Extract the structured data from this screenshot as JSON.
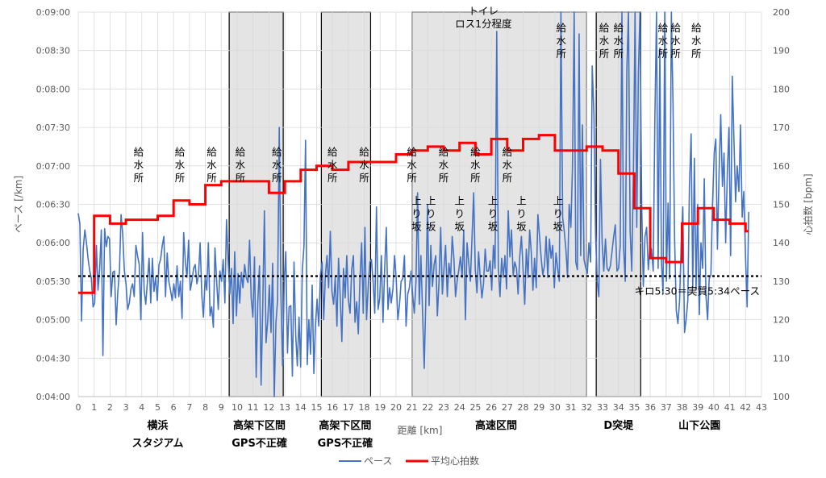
{
  "chart_data": {
    "type": "line",
    "xlabel": "距離 [km]",
    "ylabel_left": "ペース [/km]",
    "ylabel_right": "心拍数 [bpm]",
    "xlim": [
      0,
      43
    ],
    "ylim_left_seconds": [
      240,
      540
    ],
    "ylim_right": [
      100,
      200
    ],
    "x_ticks": [
      "0",
      "1",
      "2",
      "3",
      "4",
      "5",
      "6",
      "7",
      "8",
      "9",
      "10",
      "11",
      "12",
      "13",
      "14",
      "15",
      "16",
      "17",
      "18",
      "19",
      "20",
      "21",
      "22",
      "23",
      "24",
      "25",
      "26",
      "27",
      "28",
      "29",
      "30",
      "31",
      "32",
      "33",
      "34",
      "35",
      "36",
      "37",
      "38",
      "39",
      "40",
      "41",
      "42",
      "43"
    ],
    "y_left_ticks": [
      "0:04:00",
      "0:04:30",
      "0:05:00",
      "0:05:30",
      "0:06:00",
      "0:06:30",
      "0:07:00",
      "0:07:30",
      "0:08:00",
      "0:08:30",
      "0:09:00"
    ],
    "y_right_ticks": [
      "100",
      "110",
      "120",
      "130",
      "140",
      "150",
      "160",
      "170",
      "180",
      "190",
      "200"
    ],
    "grid": true,
    "legend_position": "bottom",
    "series": [
      {
        "name": "ペース",
        "color": "#4472C4",
        "axis": "left",
        "style": "line"
      },
      {
        "name": "平均心拍数",
        "color": "#FF0000",
        "axis": "right",
        "style": "step"
      }
    ],
    "pace_seconds": [
      383,
      375,
      299,
      355,
      370,
      360,
      347,
      338,
      332,
      310,
      313,
      358,
      323,
      340,
      370,
      272,
      371,
      357,
      365,
      363,
      318,
      337,
      338,
      296,
      321,
      338,
      382,
      367,
      338,
      328,
      308,
      313,
      324,
      328,
      318,
      358,
      350,
      343,
      300,
      368,
      323,
      312,
      330,
      348,
      313,
      348,
      322,
      333,
      315,
      343,
      347,
      358,
      365,
      318,
      352,
      330,
      323,
      315,
      328,
      317,
      342,
      318,
      330,
      301,
      368,
      345,
      333,
      362,
      323,
      330,
      340,
      343,
      328,
      335,
      360,
      319,
      302,
      333,
      323,
      360,
      303,
      310,
      294,
      356,
      330,
      308,
      338,
      330,
      347,
      313,
      378,
      345,
      320,
      340,
      297,
      353,
      303,
      336,
      313,
      337,
      325,
      343,
      333,
      329,
      362,
      317,
      302,
      349,
      255,
      314,
      342,
      249,
      309,
      385,
      282,
      299,
      327,
      290,
      344,
      240,
      298,
      315,
      450,
      322,
      264,
      330,
      353,
      274,
      310,
      311,
      256,
      345,
      288,
      264,
      302,
      263,
      339,
      357,
      440,
      265,
      300,
      273,
      327,
      258,
      296,
      316,
      295,
      335,
      345,
      300,
      335,
      350,
      325,
      369,
      322,
      312,
      333,
      295,
      348,
      319,
      283,
      340,
      317,
      350,
      315,
      305,
      339,
      350,
      298,
      314,
      289,
      331,
      360,
      305,
      372,
      300,
      326,
      345,
      347,
      329,
      305,
      388,
      308,
      317,
      350,
      298,
      340,
      372,
      308,
      325,
      313,
      324,
      350,
      332,
      300,
      312,
      330,
      332,
      350,
      295,
      320,
      325,
      338,
      319,
      305,
      330,
      399,
      312,
      350,
      305,
      262,
      316,
      390,
      311,
      358,
      326,
      343,
      350,
      303,
      330,
      372,
      320,
      340,
      358,
      318,
      344,
      333,
      365,
      348,
      318,
      330,
      339,
      349,
      333,
      370,
      300,
      360,
      345,
      330,
      363,
      399,
      339,
      321,
      353,
      333,
      317,
      328,
      355,
      338,
      338,
      346,
      323,
      358,
      340,
      525,
      340,
      318,
      348,
      333,
      350,
      324,
      385,
      349,
      370,
      334,
      345,
      340,
      320,
      350,
      365,
      340,
      312,
      355,
      333,
      370,
      353,
      323,
      348,
      325,
      382,
      365,
      348,
      335,
      342,
      365,
      333,
      363,
      348,
      358,
      325,
      352,
      340,
      330,
      540,
      380,
      369,
      355,
      333,
      390,
      372,
      418,
      540,
      345,
      339,
      523,
      350,
      452,
      347,
      341,
      336,
      360,
      345,
      498,
      460,
      367,
      330,
      318,
      425,
      360,
      338,
      363,
      340,
      338,
      342,
      353,
      365,
      374,
      338,
      340,
      358,
      540,
      357,
      330,
      495,
      540,
      369,
      338,
      418,
      540,
      372,
      493,
      540,
      390,
      326,
      365,
      372,
      339,
      357,
      355,
      338,
      455,
      540,
      340,
      512,
      345,
      320,
      540,
      330,
      391,
      332,
      540,
      470,
      363,
      307,
      297,
      315,
      360,
      388,
      290,
      300,
      315,
      404,
      445,
      325,
      426,
      323,
      390,
      304,
      360,
      340,
      410,
      320,
      300,
      332,
      335,
      390,
      430,
      441,
      355,
      416,
      460,
      404,
      430,
      360,
      415,
      450,
      350,
      490,
      440,
      392,
      420,
      400,
      452,
      380,
      400,
      350,
      310,
      384
    ],
    "heart_rate_steps": [
      {
        "x0": 0,
        "x1": 1.0,
        "bpm": 127
      },
      {
        "x0": 1.0,
        "x1": 2.0,
        "bpm": 147
      },
      {
        "x0": 2.0,
        "x1": 3.0,
        "bpm": 145
      },
      {
        "x0": 3.0,
        "x1": 5.0,
        "bpm": 146
      },
      {
        "x0": 5.0,
        "x1": 6.0,
        "bpm": 147
      },
      {
        "x0": 6.0,
        "x1": 7.0,
        "bpm": 151
      },
      {
        "x0": 7.0,
        "x1": 8.0,
        "bpm": 150
      },
      {
        "x0": 8.0,
        "x1": 9.0,
        "bpm": 155
      },
      {
        "x0": 9.0,
        "x1": 12.0,
        "bpm": 156
      },
      {
        "x0": 12.0,
        "x1": 13.0,
        "bpm": 153
      },
      {
        "x0": 13.0,
        "x1": 14.0,
        "bpm": 156
      },
      {
        "x0": 14.0,
        "x1": 15.0,
        "bpm": 159
      },
      {
        "x0": 15.0,
        "x1": 16.0,
        "bpm": 160
      },
      {
        "x0": 16.0,
        "x1": 17.0,
        "bpm": 159
      },
      {
        "x0": 17.0,
        "x1": 19.0,
        "bpm": 161
      },
      {
        "x0": 19.0,
        "x1": 20.0,
        "bpm": 161
      },
      {
        "x0": 20.0,
        "x1": 21.0,
        "bpm": 163
      },
      {
        "x0": 21.0,
        "x1": 22.0,
        "bpm": 164
      },
      {
        "x0": 22.0,
        "x1": 23.0,
        "bpm": 165
      },
      {
        "x0": 23.0,
        "x1": 24.0,
        "bpm": 164
      },
      {
        "x0": 24.0,
        "x1": 25.0,
        "bpm": 166
      },
      {
        "x0": 25.0,
        "x1": 26.0,
        "bpm": 163
      },
      {
        "x0": 26.0,
        "x1": 27.0,
        "bpm": 167
      },
      {
        "x0": 27.0,
        "x1": 28.0,
        "bpm": 164
      },
      {
        "x0": 28.0,
        "x1": 29.0,
        "bpm": 167
      },
      {
        "x0": 29.0,
        "x1": 30.0,
        "bpm": 168
      },
      {
        "x0": 30.0,
        "x1": 32.0,
        "bpm": 164
      },
      {
        "x0": 32.0,
        "x1": 33.0,
        "bpm": 165
      },
      {
        "x0": 33.0,
        "x1": 34.0,
        "bpm": 164
      },
      {
        "x0": 34.0,
        "x1": 35.0,
        "bpm": 158
      },
      {
        "x0": 35.0,
        "x1": 36.0,
        "bpm": 149
      },
      {
        "x0": 36.0,
        "x1": 37.0,
        "bpm": 136
      },
      {
        "x0": 37.0,
        "x1": 38.0,
        "bpm": 135
      },
      {
        "x0": 38.0,
        "x1": 39.0,
        "bpm": 145
      },
      {
        "x0": 39.0,
        "x1": 40.0,
        "bpm": 149
      },
      {
        "x0": 40.0,
        "x1": 41.0,
        "bpm": 146
      },
      {
        "x0": 41.0,
        "x1": 42.0,
        "bpm": 145
      },
      {
        "x0": 42.0,
        "x1": 42.2,
        "bpm": 143
      }
    ],
    "reference_line": {
      "pace_seconds": 334,
      "label": "キロ5:30＝実質5:34ペース"
    },
    "shaded_regions": [
      {
        "x0": 9.5,
        "x1": 12.9,
        "label": "高架下区間\nGPS不正確"
      },
      {
        "x0": 15.3,
        "x1": 18.4,
        "label": "高架下区間\nGPS不正確"
      },
      {
        "x0": 21.0,
        "x1": 32.0,
        "label": "高速区間"
      },
      {
        "x0": 32.6,
        "x1": 35.4,
        "label": "D突堤"
      }
    ],
    "region_labels": [
      {
        "x": 5.0,
        "text": "横浜\nスタジアム"
      },
      {
        "x": 11.4,
        "text": "高架下区間\nGPS不正確"
      },
      {
        "x": 16.8,
        "text": "高架下区間\nGPS不正確"
      },
      {
        "x": 26.3,
        "text": "高速区間"
      },
      {
        "x": 34.0,
        "text": "D突堤"
      },
      {
        "x": 39.1,
        "text": "山下公園"
      }
    ],
    "annotations": [
      {
        "x": 3.8,
        "pace": 428,
        "text": "給\n水\n所"
      },
      {
        "x": 6.4,
        "pace": 428,
        "text": "給\n水\n所"
      },
      {
        "x": 8.4,
        "pace": 428,
        "text": "給\n水\n所"
      },
      {
        "x": 10.2,
        "pace": 428,
        "text": "給\n水\n所"
      },
      {
        "x": 12.5,
        "pace": 428,
        "text": "給\n水\n所"
      },
      {
        "x": 16.0,
        "pace": 428,
        "text": "給\n水\n所"
      },
      {
        "x": 18.0,
        "pace": 428,
        "text": "給\n水\n所"
      },
      {
        "x": 21.0,
        "pace": 428,
        "text": "給\n水\n所"
      },
      {
        "x": 23.0,
        "pace": 428,
        "text": "給\n水\n所"
      },
      {
        "x": 25.0,
        "pace": 428,
        "text": "給\n水\n所"
      },
      {
        "x": 27.0,
        "pace": 428,
        "text": "給\n水\n所"
      },
      {
        "x": 30.4,
        "pace": 525,
        "text": "給\n水\n所"
      },
      {
        "x": 33.1,
        "pace": 525,
        "text": "給\n水\n所"
      },
      {
        "x": 34.0,
        "pace": 525,
        "text": "給\n水\n所"
      },
      {
        "x": 36.8,
        "pace": 525,
        "text": "給\n水\n所"
      },
      {
        "x": 37.6,
        "pace": 525,
        "text": "給\n水\n所"
      },
      {
        "x": 38.9,
        "pace": 525,
        "text": "給\n水\n所"
      },
      {
        "x": 21.3,
        "pace": 390,
        "text": "上\nり\n坂"
      },
      {
        "x": 22.2,
        "pace": 390,
        "text": "上\nり\n坂"
      },
      {
        "x": 24.0,
        "pace": 390,
        "text": "上\nり\n坂"
      },
      {
        "x": 26.1,
        "pace": 390,
        "text": "上\nり\n坂"
      },
      {
        "x": 27.9,
        "pace": 390,
        "text": "上\nり\n坂"
      },
      {
        "x": 30.2,
        "pace": 390,
        "text": "上\nり\n坂"
      },
      {
        "x": 25.5,
        "pace": 538,
        "text": "トイレ\nロス1分程度"
      }
    ]
  }
}
